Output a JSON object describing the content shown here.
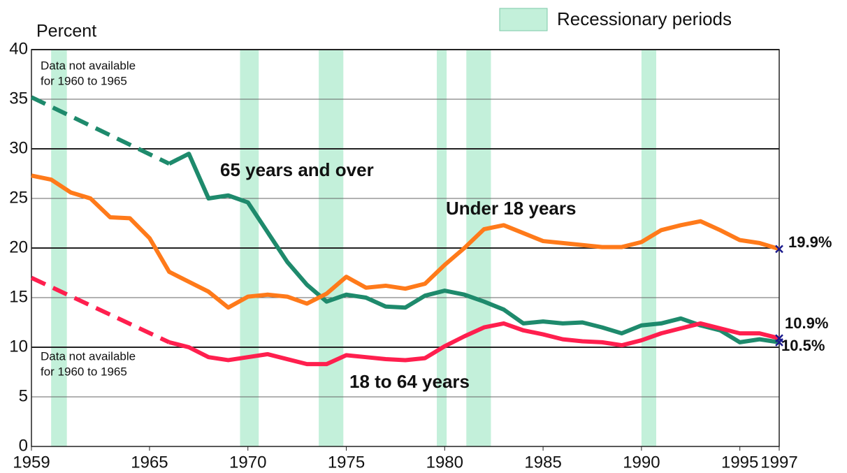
{
  "chart_data": {
    "type": "line",
    "ylabel": "Percent",
    "x": [
      1959,
      1960,
      1961,
      1962,
      1963,
      1964,
      1965,
      1966,
      1967,
      1968,
      1969,
      1970,
      1971,
      1972,
      1973,
      1974,
      1975,
      1976,
      1977,
      1978,
      1979,
      1980,
      1981,
      1982,
      1983,
      1984,
      1985,
      1986,
      1987,
      1988,
      1989,
      1990,
      1991,
      1992,
      1993,
      1994,
      1995,
      1996,
      1997
    ],
    "series": [
      {
        "name": "65 years and over",
        "color": "#1e8a6c",
        "end_label": "10.5%",
        "values": [
          35.2,
          null,
          null,
          null,
          null,
          null,
          null,
          28.5,
          29.5,
          25.0,
          25.3,
          24.6,
          21.6,
          18.6,
          16.3,
          14.6,
          15.3,
          15.0,
          14.1,
          14.0,
          15.2,
          15.7,
          15.3,
          14.6,
          13.8,
          12.4,
          12.6,
          12.4,
          12.5,
          12.0,
          11.4,
          12.2,
          12.4,
          12.9,
          12.2,
          11.7,
          10.5,
          10.8,
          10.5
        ]
      },
      {
        "name": "Under 18 years",
        "color": "#ff7a1a",
        "end_label": "19.9%",
        "values": [
          27.3,
          26.9,
          25.6,
          25.0,
          23.1,
          23.0,
          21.0,
          17.6,
          16.6,
          15.6,
          14.0,
          15.1,
          15.3,
          15.1,
          14.4,
          15.4,
          17.1,
          16.0,
          16.2,
          15.9,
          16.4,
          18.3,
          20.0,
          21.9,
          22.3,
          21.5,
          20.7,
          20.5,
          20.3,
          20.1,
          20.1,
          20.6,
          21.8,
          22.3,
          22.7,
          21.8,
          20.8,
          20.5,
          19.9
        ]
      },
      {
        "name": "18 to 64 years",
        "color": "#ff1f4e",
        "end_label": "10.9%",
        "values": [
          17.0,
          null,
          null,
          null,
          null,
          null,
          null,
          10.5,
          10.0,
          9.0,
          8.7,
          9.0,
          9.3,
          8.8,
          8.3,
          8.3,
          9.2,
          9.0,
          8.8,
          8.7,
          8.9,
          10.1,
          11.1,
          12.0,
          12.4,
          11.7,
          11.3,
          10.8,
          10.6,
          10.5,
          10.2,
          10.7,
          11.4,
          11.9,
          12.4,
          11.9,
          11.4,
          11.4,
          10.9
        ]
      }
    ],
    "gap_style": "dashed",
    "end_marker_color": "#1a1a8c",
    "recessions": {
      "name": "Recessionary periods",
      "color": "#c3f0da",
      "spans": [
        [
          1960.0,
          1960.8
        ],
        [
          1969.6,
          1970.55
        ],
        [
          1973.6,
          1974.85
        ],
        [
          1979.6,
          1980.1
        ],
        [
          1981.1,
          1982.35
        ],
        [
          1990.0,
          1990.75
        ]
      ]
    },
    "annotations": [
      {
        "lines": [
          "Data not available",
          "for 1960 to 1965"
        ]
      },
      {
        "lines": [
          "Data not available",
          "for 1960 to 1965"
        ]
      }
    ],
    "xlim": [
      1959,
      1997
    ],
    "xticks": [
      1959,
      1965,
      1970,
      1975,
      1980,
      1985,
      1990,
      1995,
      1997
    ],
    "ylim": [
      0,
      40
    ],
    "yticks": [
      0,
      5,
      10,
      15,
      20,
      25,
      30,
      35,
      40
    ],
    "grid": true
  }
}
